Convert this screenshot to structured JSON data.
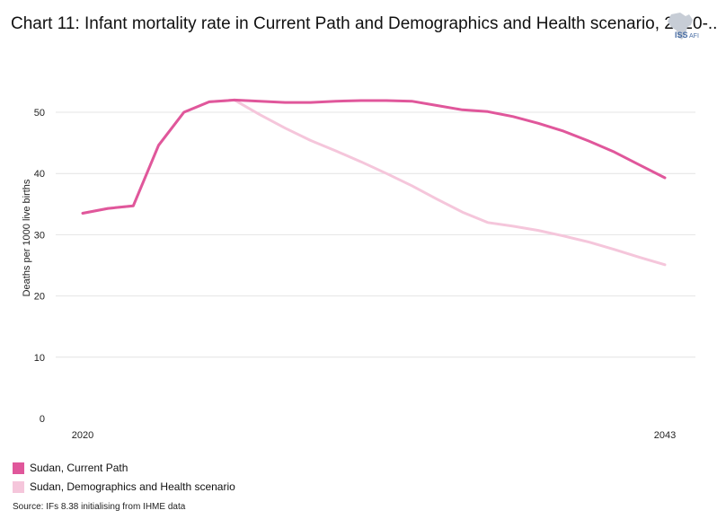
{
  "header": {
    "title": "Chart 11: Infant mortality rate in Current Path and Demographics and Health scenario, 2020-..",
    "logo_text": "ISS",
    "logo_sub": "AFI"
  },
  "chart_data": {
    "type": "line",
    "title": "Chart 11: Infant mortality rate in Current Path and Demographics and Health scenario, 2020-..",
    "xlabel": "",
    "ylabel": "Deaths per 1000 live births",
    "xlim": [
      2020,
      2043
    ],
    "ylim": [
      0,
      55
    ],
    "yticks": [
      0,
      10,
      20,
      30,
      40,
      50
    ],
    "xticks": [
      2020,
      2043
    ],
    "grid": true,
    "legend_position": "bottom-left",
    "x": [
      2020,
      2021,
      2022,
      2023,
      2024,
      2025,
      2026,
      2027,
      2028,
      2029,
      2030,
      2031,
      2032,
      2033,
      2034,
      2035,
      2036,
      2037,
      2038,
      2039,
      2040,
      2041,
      2042,
      2043
    ],
    "series": [
      {
        "name": "Sudan, Current Path",
        "color": "#e0579b",
        "values": [
          33.5,
          34.3,
          34.7,
          44.6,
          50.0,
          51.7,
          52.0,
          51.8,
          51.6,
          51.6,
          51.8,
          51.9,
          51.9,
          51.8,
          51.1,
          50.4,
          50.1,
          49.3,
          48.2,
          46.9,
          45.3,
          43.5,
          41.4,
          39.3
        ]
      },
      {
        "name": "Sudan, Demographics and Health scenario",
        "color": "#f5c6db",
        "values": [
          33.5,
          34.3,
          34.7,
          44.6,
          50.0,
          51.7,
          52.0,
          49.6,
          47.4,
          45.4,
          43.7,
          41.9,
          40.0,
          38.0,
          35.8,
          33.7,
          32.0,
          31.4,
          30.7,
          29.8,
          28.8,
          27.6,
          26.3,
          25.1
        ]
      }
    ]
  },
  "legend": {
    "items": [
      {
        "label": "Sudan, Current Path",
        "color": "#e0579b"
      },
      {
        "label": "Sudan, Demographics and Health scenario",
        "color": "#f5c6db"
      }
    ]
  },
  "footer": {
    "source": "Source: IFs 8.38 initialising from IHME data"
  }
}
